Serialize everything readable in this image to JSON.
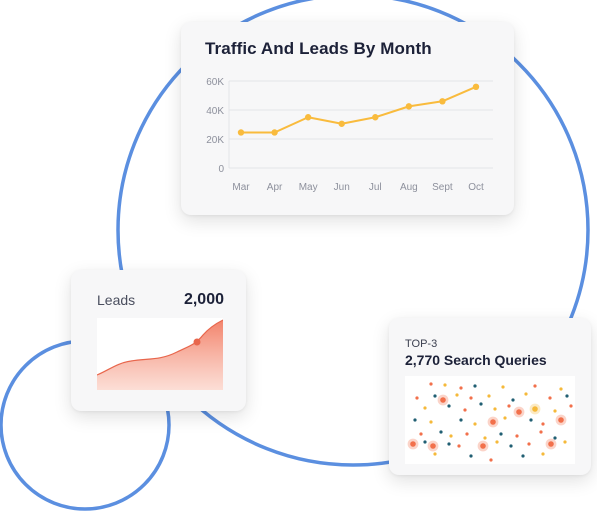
{
  "traffic_card": {
    "title": "Traffic And Leads By Month",
    "y_ticks": [
      "60K",
      "40K",
      "20K",
      "0"
    ],
    "chart_data": {
      "type": "line",
      "categories": [
        "Mar",
        "Apr",
        "May",
        "Jun",
        "Jul",
        "Aug",
        "Sept",
        "Oct"
      ],
      "series": [
        {
          "values": [
            24500,
            24500,
            35000,
            30500,
            35000,
            42500,
            46000,
            56000
          ],
          "color": "#f9bb3d"
        }
      ],
      "ylim": [
        0,
        60000
      ],
      "grid": true
    }
  },
  "leads_card": {
    "label": "Leads",
    "value": "2,000",
    "accent_color": "#f27c63"
  },
  "queries_card": {
    "eyebrow": "TOP-3",
    "title": "2,770 Search Queries",
    "dot_colors": [
      "#f2704b",
      "#f5b93a",
      "#215f73"
    ]
  },
  "decor": {
    "ring_color": "#5b8fe0"
  }
}
